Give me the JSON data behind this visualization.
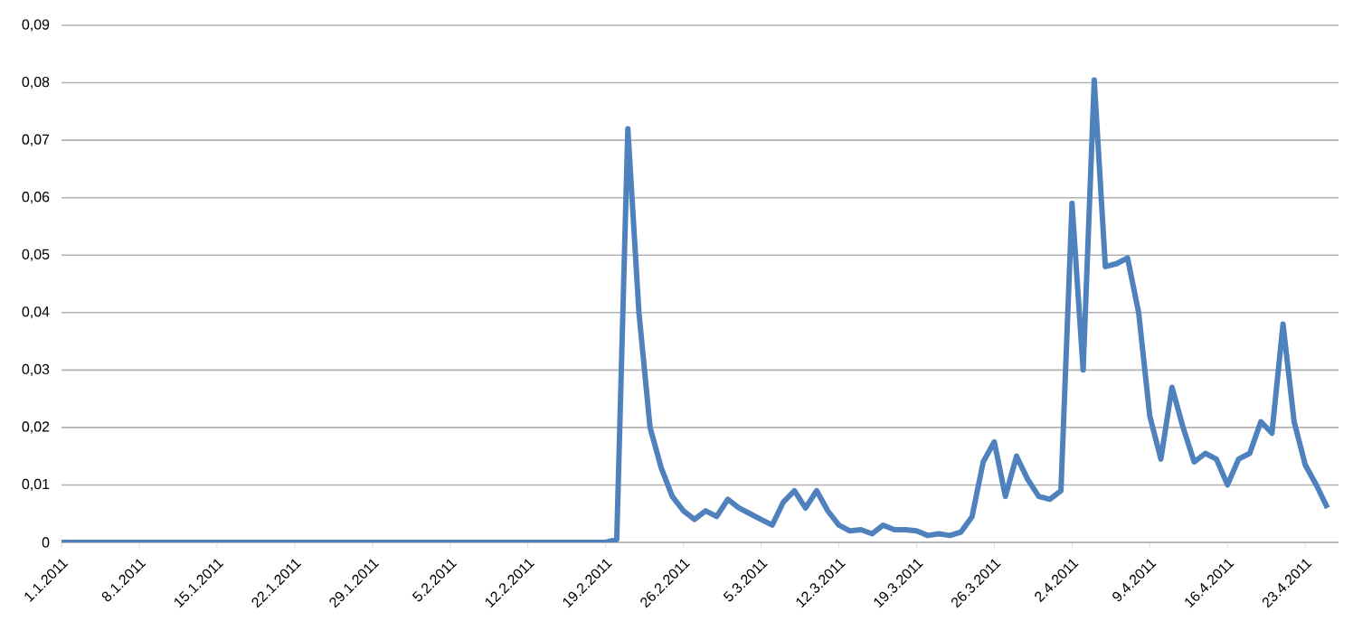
{
  "chart_data": {
    "type": "line",
    "x": [
      "2011-01-01",
      "2011-02-19",
      "2011-02-20",
      "2011-02-21",
      "2011-02-22",
      "2011-02-23",
      "2011-02-24",
      "2011-02-25",
      "2011-02-26",
      "2011-02-27",
      "2011-02-28",
      "2011-03-01",
      "2011-03-02",
      "2011-03-03",
      "2011-03-04",
      "2011-03-05",
      "2011-03-06",
      "2011-03-07",
      "2011-03-08",
      "2011-03-09",
      "2011-03-10",
      "2011-03-11",
      "2011-03-12",
      "2011-03-13",
      "2011-03-14",
      "2011-03-15",
      "2011-03-16",
      "2011-03-17",
      "2011-03-18",
      "2011-03-19",
      "2011-03-20",
      "2011-03-21",
      "2011-03-22",
      "2011-03-23",
      "2011-03-24",
      "2011-03-25",
      "2011-03-26",
      "2011-03-27",
      "2011-03-28",
      "2011-03-29",
      "2011-03-30",
      "2011-03-31",
      "2011-04-01",
      "2011-04-02",
      "2011-04-03",
      "2011-04-04",
      "2011-04-05",
      "2011-04-06",
      "2011-04-07",
      "2011-04-08",
      "2011-04-09",
      "2011-04-10",
      "2011-04-11",
      "2011-04-12",
      "2011-04-13",
      "2011-04-14",
      "2011-04-15",
      "2011-04-16",
      "2011-04-17",
      "2011-04-18",
      "2011-04-19",
      "2011-04-20",
      "2011-04-21",
      "2011-04-22",
      "2011-04-23",
      "2011-04-24",
      "2011-04-25"
    ],
    "values": [
      0,
      0,
      0.0005,
      0.072,
      0.04,
      0.02,
      0.013,
      0.008,
      0.0055,
      0.004,
      0.0055,
      0.0045,
      0.0075,
      0.006,
      0.005,
      0.004,
      0.003,
      0.007,
      0.009,
      0.006,
      0.009,
      0.0055,
      0.003,
      0.002,
      0.0022,
      0.0015,
      0.003,
      0.0022,
      0.0022,
      0.002,
      0.0012,
      0.0015,
      0.0012,
      0.0018,
      0.0045,
      0.014,
      0.0175,
      0.008,
      0.015,
      0.011,
      0.008,
      0.0075,
      0.009,
      0.059,
      0.03,
      0.0805,
      0.048,
      0.0485,
      0.0495,
      0.04,
      0.022,
      0.0145,
      0.027,
      0.02,
      0.014,
      0.0155,
      0.0145,
      0.01,
      0.0145,
      0.0155,
      0.021,
      0.019,
      0.038,
      0.021,
      0.0135,
      0.01,
      0.006
    ],
    "color": "#4f81bd",
    "xlim": [
      "2011-01-01",
      "2011-04-26"
    ],
    "xticks": [
      {
        "value": "2011-01-01",
        "label": "1.1.2011"
      },
      {
        "value": "2011-01-08",
        "label": "8.1.2011"
      },
      {
        "value": "2011-01-15",
        "label": "15.1.2011"
      },
      {
        "value": "2011-01-22",
        "label": "22.1.2011"
      },
      {
        "value": "2011-01-29",
        "label": "29.1.2011"
      },
      {
        "value": "2011-02-05",
        "label": "5.2.2011"
      },
      {
        "value": "2011-02-12",
        "label": "12.2.2011"
      },
      {
        "value": "2011-02-19",
        "label": "19.2.2011"
      },
      {
        "value": "2011-02-26",
        "label": "26.2.2011"
      },
      {
        "value": "2011-03-05",
        "label": "5.3.2011"
      },
      {
        "value": "2011-03-12",
        "label": "12.3.2011"
      },
      {
        "value": "2011-03-19",
        "label": "19.3.2011"
      },
      {
        "value": "2011-03-26",
        "label": "26.3.2011"
      },
      {
        "value": "2011-04-02",
        "label": "2.4.2011"
      },
      {
        "value": "2011-04-09",
        "label": "9.4.2011"
      },
      {
        "value": "2011-04-16",
        "label": "16.4.2011"
      },
      {
        "value": "2011-04-23",
        "label": "23.4.2011"
      }
    ],
    "ylim": [
      0,
      0.09
    ],
    "yticks": [
      0,
      {
        "value": 0.01,
        "label": "0,01"
      },
      {
        "value": 0.02,
        "label": "0,02"
      },
      {
        "value": 0.03,
        "label": "0,03"
      },
      {
        "value": 0.04,
        "label": "0,04"
      },
      {
        "value": 0.05,
        "label": "0,05"
      },
      {
        "value": 0.06,
        "label": "0,06"
      },
      {
        "value": 0.07,
        "label": "0,07"
      },
      {
        "value": 0.08,
        "label": "0,08"
      },
      {
        "value": 0.09,
        "label": "0,09"
      }
    ],
    "grid": "y"
  }
}
